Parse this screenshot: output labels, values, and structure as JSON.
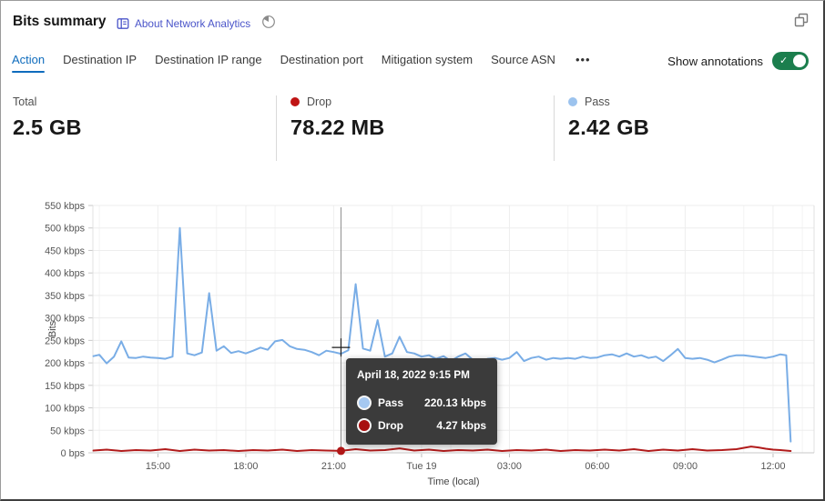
{
  "header": {
    "title": "Bits summary",
    "about_label": "About Network Analytics",
    "icons": {
      "about": "book-icon",
      "time_period": "pie-clock-icon",
      "top_right": "popout-window-icon"
    }
  },
  "tabs": {
    "items": [
      {
        "label": "Action",
        "active": true
      },
      {
        "label": "Destination IP",
        "active": false
      },
      {
        "label": "Destination IP range",
        "active": false
      },
      {
        "label": "Destination port",
        "active": false
      },
      {
        "label": "Mitigation system",
        "active": false
      },
      {
        "label": "Source ASN",
        "active": false
      }
    ],
    "more_label": "•••",
    "active_color": "#0f6cbd"
  },
  "annotations": {
    "label": "Show annotations",
    "state": "on",
    "toggle_color": "#1b7e4d"
  },
  "stats": [
    {
      "label": "Total",
      "value": "2.5 GB"
    },
    {
      "label": "Drop",
      "value": "78.22 MB",
      "color": "#bf1414"
    },
    {
      "label": "Pass",
      "value": "2.42 GB",
      "color": "#9cc3ee"
    }
  ],
  "tooltip": {
    "title": "April 18, 2022 9:15 PM",
    "rows": [
      {
        "name": "Pass",
        "value": "220.13 kbps",
        "color": "#a5c8f1"
      },
      {
        "name": "Drop",
        "value": "4.27 kbps",
        "color": "#a80f0f"
      }
    ]
  },
  "chart_data": {
    "type": "line",
    "xlabel": "Time (local)",
    "ylabel": "Bits",
    "x_unit_hours_from": "2022-04-18 13:00 local",
    "x_range": [
      -0.22,
      24.4
    ],
    "y_range": [
      0,
      550
    ],
    "grid": true,
    "y_ticks": [
      {
        "v": 0,
        "label": "0 bps"
      },
      {
        "v": 50,
        "label": "50 kbps"
      },
      {
        "v": 100,
        "label": "100 kbps"
      },
      {
        "v": 150,
        "label": "150 kbps"
      },
      {
        "v": 200,
        "label": "200 kbps"
      },
      {
        "v": 250,
        "label": "250 kbps"
      },
      {
        "v": 300,
        "label": "300 kbps"
      },
      {
        "v": 350,
        "label": "350 kbps"
      },
      {
        "v": 400,
        "label": "400 kbps"
      },
      {
        "v": 450,
        "label": "450 kbps"
      },
      {
        "v": 500,
        "label": "500 kbps"
      },
      {
        "v": 550,
        "label": "550 kbps"
      }
    ],
    "x_ticks": [
      {
        "t": 2,
        "label": "15:00"
      },
      {
        "t": 5,
        "label": "18:00"
      },
      {
        "t": 8,
        "label": "21:00"
      },
      {
        "t": 11,
        "label": "Tue 19"
      },
      {
        "t": 14,
        "label": "03:00"
      },
      {
        "t": 17,
        "label": "06:00"
      },
      {
        "t": 20,
        "label": "09:00"
      },
      {
        "t": 23,
        "label": "12:00"
      }
    ],
    "series": [
      {
        "name": "Pass",
        "color": "#79ade6",
        "unit": "kbps",
        "points": [
          [
            -0.2,
            215
          ],
          [
            0,
            218
          ],
          [
            0.25,
            199
          ],
          [
            0.5,
            214
          ],
          [
            0.75,
            248
          ],
          [
            1,
            212
          ],
          [
            1.25,
            211
          ],
          [
            1.5,
            214
          ],
          [
            1.75,
            212
          ],
          [
            2,
            211
          ],
          [
            2.25,
            209
          ],
          [
            2.5,
            214
          ],
          [
            2.75,
            500
          ],
          [
            3,
            221
          ],
          [
            3.25,
            217
          ],
          [
            3.5,
            223
          ],
          [
            3.75,
            355
          ],
          [
            4,
            227
          ],
          [
            4.25,
            237
          ],
          [
            4.5,
            222
          ],
          [
            4.75,
            226
          ],
          [
            5,
            221
          ],
          [
            5.25,
            227
          ],
          [
            5.5,
            234
          ],
          [
            5.75,
            229
          ],
          [
            6,
            248
          ],
          [
            6.25,
            251
          ],
          [
            6.5,
            237
          ],
          [
            6.75,
            231
          ],
          [
            7,
            229
          ],
          [
            7.25,
            224
          ],
          [
            7.5,
            217
          ],
          [
            7.75,
            227
          ],
          [
            8,
            224
          ],
          [
            8.25,
            220.13
          ],
          [
            8.5,
            228
          ],
          [
            8.75,
            375
          ],
          [
            9,
            232
          ],
          [
            9.25,
            227
          ],
          [
            9.5,
            295
          ],
          [
            9.75,
            214
          ],
          [
            10,
            221
          ],
          [
            10.25,
            258
          ],
          [
            10.5,
            224
          ],
          [
            10.75,
            221
          ],
          [
            11,
            214
          ],
          [
            11.25,
            217
          ],
          [
            11.5,
            209
          ],
          [
            11.75,
            215
          ],
          [
            12,
            204
          ],
          [
            12.25,
            214
          ],
          [
            12.5,
            221
          ],
          [
            12.75,
            207
          ],
          [
            13,
            196
          ],
          [
            13.25,
            209
          ],
          [
            13.5,
            211
          ],
          [
            13.75,
            207
          ],
          [
            14,
            211
          ],
          [
            14.25,
            224
          ],
          [
            14.5,
            204
          ],
          [
            14.75,
            211
          ],
          [
            15,
            214
          ],
          [
            15.25,
            207
          ],
          [
            15.5,
            211
          ],
          [
            15.75,
            209
          ],
          [
            16,
            211
          ],
          [
            16.25,
            209
          ],
          [
            16.5,
            214
          ],
          [
            16.75,
            211
          ],
          [
            17,
            212
          ],
          [
            17.25,
            217
          ],
          [
            17.5,
            219
          ],
          [
            17.75,
            214
          ],
          [
            18,
            221
          ],
          [
            18.25,
            214
          ],
          [
            18.5,
            217
          ],
          [
            18.75,
            211
          ],
          [
            19,
            214
          ],
          [
            19.25,
            204
          ],
          [
            19.5,
            217
          ],
          [
            19.75,
            231
          ],
          [
            20,
            211
          ],
          [
            20.25,
            209
          ],
          [
            20.5,
            211
          ],
          [
            20.75,
            207
          ],
          [
            21,
            201
          ],
          [
            21.25,
            207
          ],
          [
            21.5,
            214
          ],
          [
            21.75,
            217
          ],
          [
            22,
            217
          ],
          [
            22.25,
            215
          ],
          [
            22.5,
            213
          ],
          [
            22.75,
            211
          ],
          [
            23,
            214
          ],
          [
            23.25,
            219
          ],
          [
            23.45,
            217
          ],
          [
            23.6,
            25
          ]
        ]
      },
      {
        "name": "Drop",
        "color": "#b11b1b",
        "unit": "kbps",
        "points": [
          [
            -0.2,
            5
          ],
          [
            0.25,
            7
          ],
          [
            0.75,
            4
          ],
          [
            1.25,
            6
          ],
          [
            1.75,
            5
          ],
          [
            2.25,
            8
          ],
          [
            2.75,
            4
          ],
          [
            3.25,
            7
          ],
          [
            3.75,
            5
          ],
          [
            4.25,
            6
          ],
          [
            4.75,
            4
          ],
          [
            5.25,
            6
          ],
          [
            5.75,
            5
          ],
          [
            6.25,
            7
          ],
          [
            6.75,
            4
          ],
          [
            7.25,
            6
          ],
          [
            7.75,
            5
          ],
          [
            8.25,
            4.27
          ],
          [
            8.75,
            8
          ],
          [
            9.25,
            5
          ],
          [
            9.75,
            6
          ],
          [
            10.25,
            10
          ],
          [
            10.75,
            5
          ],
          [
            11.25,
            7
          ],
          [
            11.75,
            4
          ],
          [
            12.25,
            6
          ],
          [
            12.75,
            5
          ],
          [
            13.25,
            7
          ],
          [
            13.75,
            4
          ],
          [
            14.25,
            6
          ],
          [
            14.75,
            5
          ],
          [
            15.25,
            7
          ],
          [
            15.75,
            4
          ],
          [
            16.25,
            6
          ],
          [
            16.75,
            5
          ],
          [
            17.25,
            7
          ],
          [
            17.75,
            5
          ],
          [
            18.25,
            8
          ],
          [
            18.75,
            4
          ],
          [
            19.25,
            7
          ],
          [
            19.75,
            5
          ],
          [
            20.25,
            8
          ],
          [
            20.75,
            5
          ],
          [
            21.25,
            6
          ],
          [
            21.75,
            8
          ],
          [
            22.25,
            14
          ],
          [
            22.5,
            12
          ],
          [
            22.75,
            9
          ],
          [
            23,
            7
          ],
          [
            23.25,
            6
          ],
          [
            23.6,
            4
          ]
        ]
      }
    ],
    "crosshair": {
      "t": 8.25,
      "pass_kbps": 220.13,
      "drop_kbps": 4.27
    }
  }
}
